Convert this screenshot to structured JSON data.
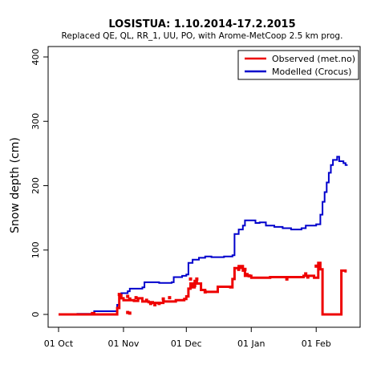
{
  "chart_data": {
    "type": "line",
    "title": "LOSISTUA: 1.10.2014-17.2.2015",
    "subtitle": "Replaced QE, QL, RR_1, UU, PO,  with Arome-MetCoop 2.5 km prog.",
    "xlabel": "",
    "ylabel": "Snow depth (cm)",
    "xlim": [
      "2014-10-01",
      "2015-02-17"
    ],
    "ylim": [
      0,
      400
    ],
    "x_ticks": [
      {
        "date": "2014-10-01",
        "label": "01 Oct"
      },
      {
        "date": "2014-11-01",
        "label": "01 Nov"
      },
      {
        "date": "2014-12-01",
        "label": "01 Dec"
      },
      {
        "date": "2015-01-01",
        "label": "01 Jan"
      },
      {
        "date": "2015-02-01",
        "label": "01 Feb"
      }
    ],
    "y_ticks": [
      0,
      100,
      200,
      300,
      400
    ],
    "legend": "top-right",
    "series": [
      {
        "name": "Modelled (Crocus)",
        "color": "#0000cc",
        "points": [
          [
            "2014-10-01",
            0
          ],
          [
            "2014-10-10",
            1
          ],
          [
            "2014-10-17",
            2
          ],
          [
            "2014-10-18",
            5
          ],
          [
            "2014-10-27",
            5
          ],
          [
            "2014-10-29",
            15
          ],
          [
            "2014-10-30",
            28
          ],
          [
            "2014-10-31",
            33
          ],
          [
            "2014-11-03",
            36
          ],
          [
            "2014-11-04",
            40
          ],
          [
            "2014-11-10",
            42
          ],
          [
            "2014-11-11",
            50
          ],
          [
            "2014-11-18",
            49
          ],
          [
            "2014-11-24",
            50
          ],
          [
            "2014-11-25",
            58
          ],
          [
            "2014-11-29",
            60
          ],
          [
            "2014-12-01",
            62
          ],
          [
            "2014-12-02",
            80
          ],
          [
            "2014-12-04",
            85
          ],
          [
            "2014-12-07",
            88
          ],
          [
            "2014-12-10",
            90
          ],
          [
            "2014-12-13",
            89
          ],
          [
            "2014-12-19",
            90
          ],
          [
            "2014-12-23",
            92
          ],
          [
            "2014-12-24",
            125
          ],
          [
            "2014-12-26",
            132
          ],
          [
            "2014-12-28",
            138
          ],
          [
            "2014-12-29",
            146
          ],
          [
            "2014-12-31",
            146
          ],
          [
            "2015-01-03",
            142
          ],
          [
            "2015-01-05",
            143
          ],
          [
            "2015-01-08",
            138
          ],
          [
            "2015-01-12",
            136
          ],
          [
            "2015-01-16",
            134
          ],
          [
            "2015-01-20",
            132
          ],
          [
            "2015-01-25",
            134
          ],
          [
            "2015-01-27",
            138
          ],
          [
            "2015-02-01",
            140
          ],
          [
            "2015-02-03",
            155
          ],
          [
            "2015-02-04",
            175
          ],
          [
            "2015-02-05",
            190
          ],
          [
            "2015-02-06",
            205
          ],
          [
            "2015-02-07",
            220
          ],
          [
            "2015-02-08",
            232
          ],
          [
            "2015-02-09",
            240
          ],
          [
            "2015-02-11",
            245
          ],
          [
            "2015-02-12",
            238
          ],
          [
            "2015-02-14",
            235
          ],
          [
            "2015-02-15",
            232
          ],
          [
            "2015-02-16",
            232
          ]
        ]
      },
      {
        "name": "Observed (met.no)",
        "color": "#ee0000",
        "points": [
          [
            "2014-10-01",
            0
          ],
          [
            "2014-10-10",
            0
          ],
          [
            "2014-10-17",
            2
          ],
          [
            "2014-10-18",
            0
          ],
          [
            "2014-10-27",
            0
          ],
          [
            "2014-10-29",
            10
          ],
          [
            "2014-10-30",
            30
          ],
          [
            "2014-10-31",
            25
          ],
          [
            "2014-11-01",
            22
          ],
          [
            "2014-11-06",
            21
          ],
          [
            "2014-11-08",
            25
          ],
          [
            "2014-11-10",
            20
          ],
          [
            "2014-11-13",
            19
          ],
          [
            "2014-11-15",
            18
          ],
          [
            "2014-11-20",
            20
          ],
          [
            "2014-11-26",
            22
          ],
          [
            "2014-11-30",
            24
          ],
          [
            "2014-12-01",
            28
          ],
          [
            "2014-12-02",
            40
          ],
          [
            "2014-12-03",
            48
          ],
          [
            "2014-12-04",
            42
          ],
          [
            "2014-12-05",
            52
          ],
          [
            "2014-12-06",
            48
          ],
          [
            "2014-12-08",
            38
          ],
          [
            "2014-12-10",
            35
          ],
          [
            "2014-12-15",
            35
          ],
          [
            "2014-12-16",
            43
          ],
          [
            "2014-12-22",
            42
          ],
          [
            "2014-12-23",
            55
          ],
          [
            "2014-12-24",
            72
          ],
          [
            "2014-12-26",
            75
          ],
          [
            "2014-12-28",
            68
          ],
          [
            "2014-12-29",
            60
          ],
          [
            "2015-01-01",
            57
          ],
          [
            "2015-01-06",
            57
          ],
          [
            "2015-01-10",
            58
          ],
          [
            "2015-01-20",
            58
          ],
          [
            "2015-01-26",
            60
          ],
          [
            "2015-01-31",
            57
          ],
          [
            "2015-02-02",
            80
          ],
          [
            "2015-02-03",
            70
          ],
          [
            "2015-02-04",
            0
          ],
          [
            "2015-02-12",
            0
          ],
          [
            "2015-02-13",
            68
          ],
          [
            "2015-02-15",
            65
          ]
        ]
      }
    ],
    "observed_scatter": [
      [
        "2014-10-30",
        31
      ],
      [
        "2014-11-03",
        28
      ],
      [
        "2014-11-04",
        24
      ],
      [
        "2014-11-07",
        26
      ],
      [
        "2014-11-12",
        22
      ],
      [
        "2014-11-14",
        17
      ],
      [
        "2014-11-16",
        15
      ],
      [
        "2014-11-18",
        17
      ],
      [
        "2014-11-20",
        24
      ],
      [
        "2014-11-23",
        26
      ],
      [
        "2014-11-03",
        3
      ],
      [
        "2014-11-04",
        2
      ],
      [
        "2014-12-03",
        55
      ],
      [
        "2014-12-05",
        45
      ],
      [
        "2014-12-06",
        55
      ],
      [
        "2014-12-10",
        35
      ],
      [
        "2014-12-26",
        70
      ],
      [
        "2014-12-27",
        73
      ],
      [
        "2014-12-29",
        70
      ],
      [
        "2014-12-30",
        62
      ],
      [
        "2014-12-31",
        60
      ],
      [
        "2015-01-18",
        55
      ],
      [
        "2015-01-27",
        63
      ],
      [
        "2015-01-28",
        58
      ],
      [
        "2015-02-01",
        75
      ]
    ]
  }
}
